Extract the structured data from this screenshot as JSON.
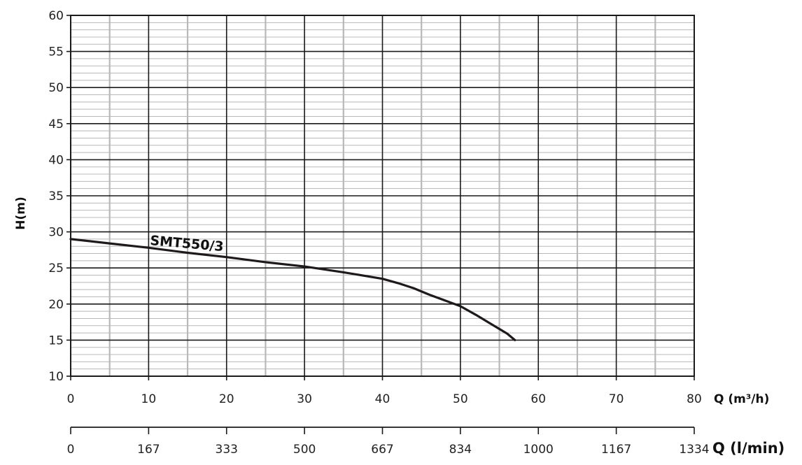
{
  "chart_data": {
    "type": "line",
    "xlabel": "Q (m³/h)",
    "xlabel_secondary": "Q (l/min)",
    "ylabel": "H(m)",
    "xlim": [
      0,
      80
    ],
    "ylim": [
      10,
      60
    ],
    "x_ticks": [
      "0",
      "10",
      "20",
      "30",
      "40",
      "50",
      "60",
      "70",
      "80"
    ],
    "x_ticks_secondary": [
      "0",
      "167",
      "333",
      "500",
      "667",
      "834",
      "1000",
      "1167",
      "1334"
    ],
    "y_ticks": [
      "10",
      "15",
      "20",
      "25",
      "30",
      "35",
      "40",
      "45",
      "50",
      "55",
      "60"
    ],
    "grid": true,
    "series": [
      {
        "name": "SMT550/3",
        "color": "#1e1a1c",
        "x": [
          0,
          5,
          10,
          15,
          20,
          25,
          30,
          35,
          40,
          42,
          44,
          46,
          48,
          50,
          52,
          54,
          56,
          57
        ],
        "y": [
          29.0,
          28.4,
          27.8,
          27.1,
          26.5,
          25.8,
          25.2,
          24.4,
          23.5,
          22.9,
          22.2,
          21.3,
          20.5,
          19.7,
          18.5,
          17.2,
          15.9,
          15.0
        ]
      }
    ]
  },
  "colors": {
    "major_grid": "#1a1a1a",
    "minor_grid": "#b8b8b8",
    "curve": "#1e1a1c"
  }
}
